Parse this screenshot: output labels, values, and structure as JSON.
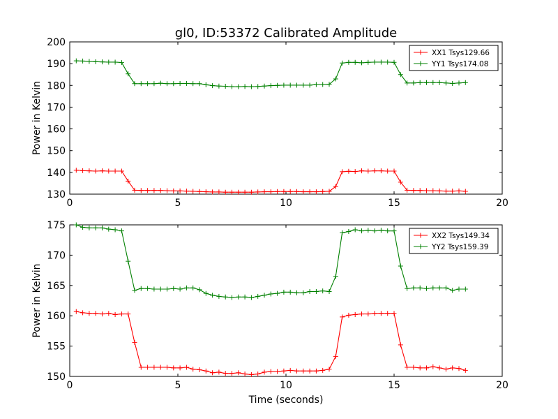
{
  "figure": {
    "title": "gl0, ID:53372 Calibrated Amplitude"
  },
  "chart_data": [
    {
      "type": "line",
      "title": "gl0, ID:53372 Calibrated Amplitude",
      "xlabel": "",
      "ylabel": "Power in Kelvin",
      "xlim": [
        0,
        20
      ],
      "ylim": [
        130,
        200
      ],
      "xticks": [
        "0",
        "5",
        "10",
        "15",
        "20"
      ],
      "yticks": [
        "130",
        "140",
        "150",
        "160",
        "170",
        "180",
        "190",
        "200"
      ],
      "grid": false,
      "legend_position": "top-right",
      "x": [
        0.3,
        0.6,
        0.9,
        1.2,
        1.5,
        1.8,
        2.1,
        2.4,
        2.7,
        3.0,
        3.3,
        3.6,
        3.9,
        4.2,
        4.5,
        4.8,
        5.1,
        5.4,
        5.7,
        6.0,
        6.3,
        6.6,
        6.9,
        7.2,
        7.5,
        7.8,
        8.1,
        8.4,
        8.7,
        9.0,
        9.3,
        9.6,
        9.9,
        10.2,
        10.5,
        10.8,
        11.1,
        11.4,
        11.7,
        12.0,
        12.3,
        12.6,
        12.9,
        13.2,
        13.5,
        13.8,
        14.1,
        14.4,
        14.7,
        15.0,
        15.3,
        15.6,
        15.9,
        16.2,
        16.5,
        16.8,
        17.1,
        17.4,
        17.7,
        18.0,
        18.3
      ],
      "series": [
        {
          "name": "XX1 Tsys129.66",
          "color": "#ff0000",
          "values": [
            141.0,
            140.8,
            140.7,
            140.6,
            140.7,
            140.6,
            140.6,
            140.6,
            136.0,
            131.8,
            131.7,
            131.7,
            131.7,
            131.7,
            131.6,
            131.5,
            131.5,
            131.4,
            131.3,
            131.2,
            131.1,
            131.0,
            131.0,
            130.9,
            130.9,
            130.9,
            130.9,
            130.9,
            131.0,
            131.1,
            131.1,
            131.2,
            131.2,
            131.2,
            131.2,
            131.1,
            131.1,
            131.1,
            131.2,
            131.3,
            133.5,
            140.3,
            140.5,
            140.4,
            140.7,
            140.6,
            140.7,
            140.7,
            140.6,
            140.6,
            135.5,
            131.8,
            131.7,
            131.7,
            131.6,
            131.6,
            131.5,
            131.4,
            131.4,
            131.5,
            131.3
          ]
        },
        {
          "name": "YY1 Tsys174.08",
          "color": "#008000",
          "values": [
            191.3,
            191.2,
            191.0,
            190.9,
            190.8,
            190.7,
            190.7,
            190.5,
            185.3,
            180.8,
            180.8,
            180.8,
            180.8,
            181.0,
            180.8,
            180.8,
            180.9,
            180.9,
            180.8,
            180.8,
            180.3,
            179.9,
            179.7,
            179.6,
            179.4,
            179.4,
            179.5,
            179.4,
            179.5,
            179.7,
            179.9,
            180.0,
            180.1,
            180.1,
            180.1,
            180.1,
            180.1,
            180.4,
            180.4,
            180.5,
            183.0,
            190.3,
            190.6,
            190.6,
            190.4,
            190.6,
            190.7,
            190.7,
            190.7,
            190.6,
            185.0,
            181.1,
            181.1,
            181.3,
            181.3,
            181.3,
            181.3,
            181.1,
            180.9,
            181.1,
            181.3
          ]
        }
      ]
    },
    {
      "type": "line",
      "title": "",
      "xlabel": "Time (seconds)",
      "ylabel": "Power in Kelvin",
      "xlim": [
        0,
        20
      ],
      "ylim": [
        150,
        175
      ],
      "xticks": [
        "0",
        "5",
        "10",
        "15",
        "20"
      ],
      "yticks": [
        "150",
        "155",
        "160",
        "165",
        "170",
        "175"
      ],
      "grid": false,
      "legend_position": "top-right",
      "x": [
        0.3,
        0.6,
        0.9,
        1.2,
        1.5,
        1.8,
        2.1,
        2.4,
        2.7,
        3.0,
        3.3,
        3.6,
        3.9,
        4.2,
        4.5,
        4.8,
        5.1,
        5.4,
        5.7,
        6.0,
        6.3,
        6.6,
        6.9,
        7.2,
        7.5,
        7.8,
        8.1,
        8.4,
        8.7,
        9.0,
        9.3,
        9.6,
        9.9,
        10.2,
        10.5,
        10.8,
        11.1,
        11.4,
        11.7,
        12.0,
        12.3,
        12.6,
        12.9,
        13.2,
        13.5,
        13.8,
        14.1,
        14.4,
        14.7,
        15.0,
        15.3,
        15.6,
        15.9,
        16.2,
        16.5,
        16.8,
        17.1,
        17.4,
        17.7,
        18.0,
        18.3
      ],
      "series": [
        {
          "name": "XX2 Tsys149.34",
          "color": "#ff0000",
          "values": [
            160.7,
            160.5,
            160.4,
            160.4,
            160.3,
            160.4,
            160.2,
            160.3,
            160.3,
            155.6,
            151.5,
            151.5,
            151.5,
            151.5,
            151.5,
            151.4,
            151.4,
            151.5,
            151.2,
            151.1,
            150.9,
            150.6,
            150.7,
            150.5,
            150.5,
            150.6,
            150.4,
            150.3,
            150.4,
            150.7,
            150.8,
            150.8,
            150.9,
            151.0,
            150.9,
            150.9,
            150.9,
            150.9,
            151.0,
            151.2,
            153.3,
            159.8,
            160.1,
            160.2,
            160.3,
            160.3,
            160.4,
            160.4,
            160.4,
            160.4,
            155.2,
            151.5,
            151.5,
            151.4,
            151.4,
            151.6,
            151.4,
            151.2,
            151.4,
            151.3,
            151.0
          ]
        },
        {
          "name": "YY2 Tsys159.39",
          "color": "#008000",
          "values": [
            175.0,
            174.6,
            174.5,
            174.5,
            174.5,
            174.3,
            174.2,
            174.0,
            169.0,
            164.2,
            164.5,
            164.5,
            164.4,
            164.4,
            164.4,
            164.5,
            164.4,
            164.6,
            164.6,
            164.3,
            163.7,
            163.4,
            163.2,
            163.1,
            163.0,
            163.1,
            163.1,
            163.0,
            163.2,
            163.4,
            163.6,
            163.7,
            163.9,
            163.9,
            163.8,
            163.8,
            164.0,
            164.0,
            164.1,
            164.0,
            166.5,
            173.7,
            173.9,
            174.2,
            174.0,
            174.1,
            174.0,
            174.1,
            174.0,
            174.0,
            168.2,
            164.5,
            164.6,
            164.6,
            164.5,
            164.6,
            164.6,
            164.6,
            164.2,
            164.4,
            164.4
          ]
        }
      ]
    }
  ]
}
